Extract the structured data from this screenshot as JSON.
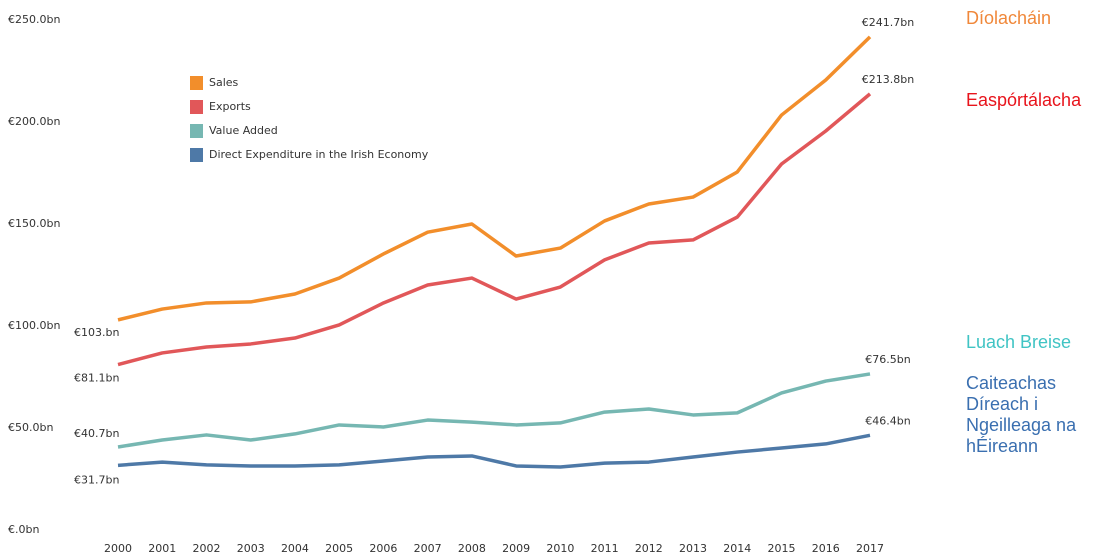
{
  "chart_data": {
    "type": "line",
    "x": [
      2000,
      2001,
      2002,
      2003,
      2004,
      2005,
      2006,
      2007,
      2008,
      2009,
      2010,
      2011,
      2012,
      2013,
      2014,
      2015,
      2016,
      2017
    ],
    "xlim": [
      2000,
      2017
    ],
    "xticks": [
      2000,
      2001,
      2002,
      2003,
      2004,
      2005,
      2006,
      2007,
      2008,
      2009,
      2010,
      2011,
      2012,
      2013,
      2014,
      2015,
      2016,
      2017
    ],
    "ylim": [
      0,
      250
    ],
    "yticks": [
      {
        "value": 0,
        "label": "€.0bn"
      },
      {
        "value": 50,
        "label": "€50.0bn"
      },
      {
        "value": 100,
        "label": "€100.0bn"
      },
      {
        "value": 150,
        "label": "€150.0bn"
      },
      {
        "value": 200,
        "label": "€200.0bn"
      },
      {
        "value": 250,
        "label": "€250.0bn"
      }
    ],
    "grid": false,
    "series": [
      {
        "name": "Sales",
        "color": "#f28e2b",
        "values": [
          103,
          108.3,
          111.3,
          111.8,
          115.7,
          123.5,
          135.3,
          146,
          150,
          134.3,
          138.2,
          151.5,
          159.8,
          163.2,
          175.5,
          203.4,
          220.6,
          241.7
        ],
        "value_labels": [
          "€103.bn",
          null,
          null,
          null,
          null,
          null,
          null,
          null,
          null,
          null,
          null,
          null,
          null,
          null,
          null,
          null,
          null,
          "€241.7bn"
        ]
      },
      {
        "name": "Exports",
        "color": "#e15759",
        "values": [
          81.1,
          86.8,
          89.7,
          91.2,
          94.1,
          100.5,
          111.3,
          120.1,
          123.5,
          113.2,
          119.1,
          132.4,
          140.7,
          142.2,
          153.4,
          179.4,
          195.6,
          213.8
        ],
        "value_labels": [
          "€81.1bn",
          null,
          null,
          null,
          null,
          null,
          null,
          null,
          null,
          null,
          null,
          null,
          null,
          null,
          null,
          null,
          null,
          "€213.8bn"
        ]
      },
      {
        "name": "Value Added",
        "color": "#76b7b2",
        "values": [
          40.7,
          44.1,
          46.6,
          44.1,
          47.1,
          51.5,
          50.5,
          53.9,
          52.9,
          51.5,
          52.5,
          57.8,
          59.3,
          56.4,
          57.4,
          67.2,
          73,
          76.5
        ],
        "value_labels": [
          "€40.7bn",
          null,
          null,
          null,
          null,
          null,
          null,
          null,
          null,
          null,
          null,
          null,
          null,
          null,
          null,
          null,
          null,
          "€76.5bn"
        ]
      },
      {
        "name": "Direct Expenditure in the Irish Economy",
        "color": "#4e79a7",
        "values": [
          31.7,
          33.3,
          31.9,
          31.4,
          31.4,
          31.9,
          33.8,
          35.8,
          36.3,
          31.4,
          30.9,
          32.8,
          33.3,
          35.8,
          38.2,
          40.2,
          42.2,
          46.4
        ],
        "value_labels": [
          "€31.7bn",
          null,
          null,
          null,
          null,
          null,
          null,
          null,
          null,
          null,
          null,
          null,
          null,
          null,
          null,
          null,
          null,
          "€46.4bn"
        ]
      }
    ],
    "annotations": [
      {
        "text": "Díolacháin",
        "color": "#f0883a"
      },
      {
        "text": "Easpórtálacha",
        "color": "#e8141c"
      },
      {
        "text": "Luach Breise",
        "color": "#40c4c4"
      },
      {
        "text": "Caiteachas Díreach i Ngeilleaga na hÉireann",
        "color": "#3a6fb0"
      }
    ]
  }
}
